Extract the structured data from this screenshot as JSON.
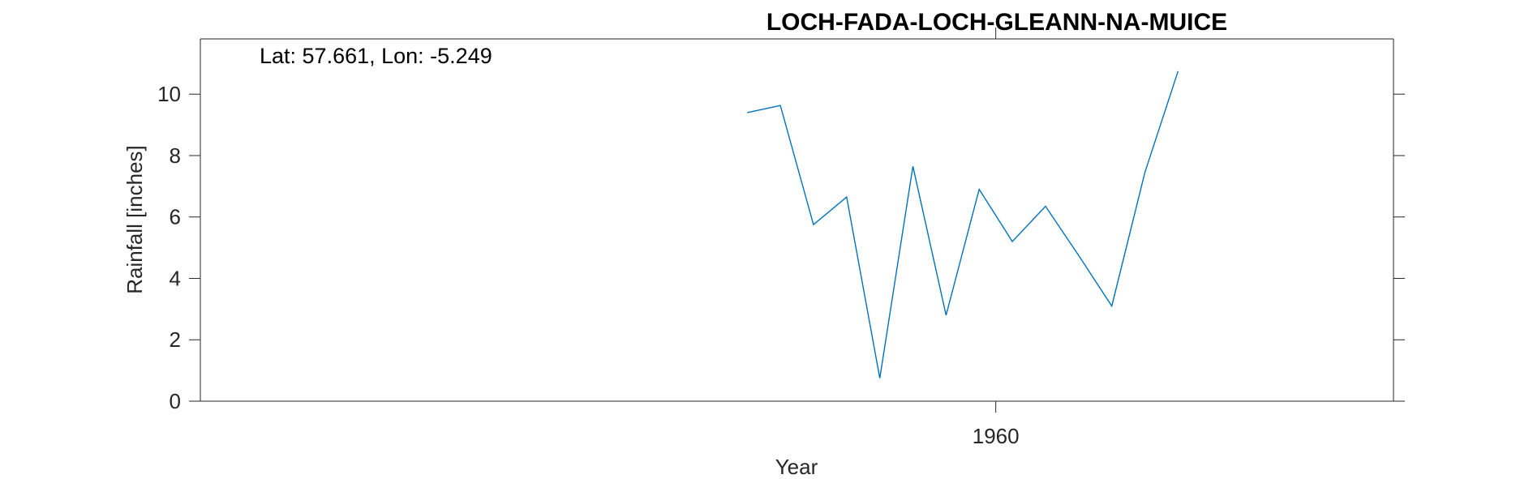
{
  "chart_data": {
    "type": "line",
    "title": "LOCH-FADA-LOCH-GLEANN-NA-MUICE",
    "annotation": "Lat: 57.661, Lon: -5.249",
    "xlabel": "Year",
    "ylabel": "Rainfall [inches]",
    "xlim": [
      1936,
      1972
    ],
    "ylim": [
      0,
      11.8
    ],
    "xticks": [
      1960
    ],
    "xtick_labels": [
      "1960"
    ],
    "yticks": [
      0,
      2,
      4,
      6,
      8,
      10
    ],
    "ytick_labels": [
      "0",
      "2",
      "4",
      "6",
      "8",
      "10"
    ],
    "grid": false,
    "legend": "none",
    "series": [
      {
        "color": "#0072BD",
        "x": [
          1952.5,
          1953.5,
          1954.5,
          1955.5,
          1956.5,
          1957.5,
          1958.5,
          1959.5,
          1960.5,
          1961.5,
          1962.5,
          1963.5,
          1964.5,
          1965.5
        ],
        "y": [
          9.4,
          9.63,
          5.75,
          6.65,
          0.75,
          7.65,
          2.8,
          6.9,
          5.2,
          6.35,
          4.75,
          3.1,
          7.45,
          10.75
        ]
      }
    ]
  }
}
